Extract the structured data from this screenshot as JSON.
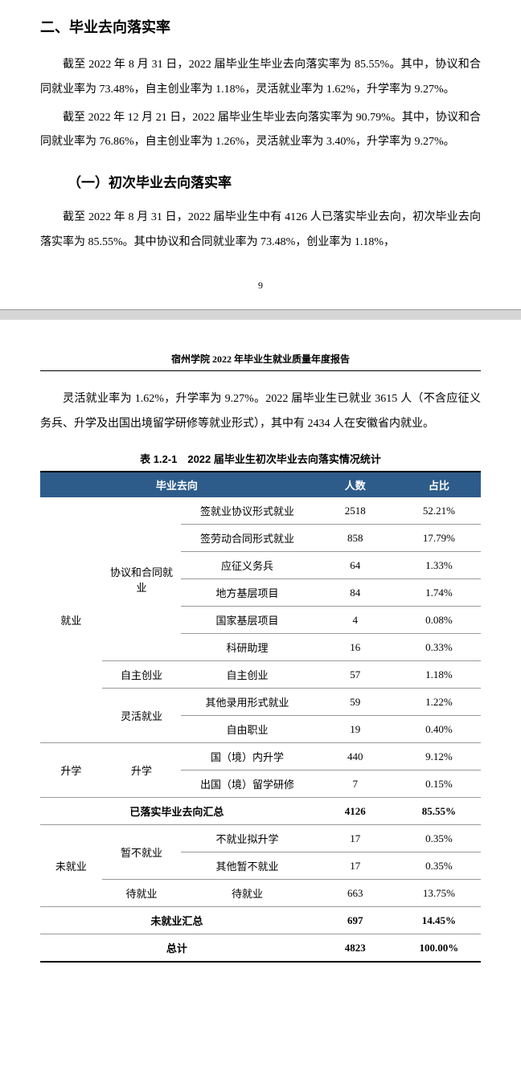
{
  "page1": {
    "heading2": "二、毕业去向落实率",
    "para1": "截至 2022 年 8 月 31 日，2022 届毕业生毕业去向落实率为 85.55%。其中，协议和合同就业率为 73.48%，自主创业率为 1.18%，灵活就业率为 1.62%，升学率为 9.27%。",
    "para2": "截至 2022 年 12 月 21 日，2022 届毕业生毕业去向落实率为 90.79%。其中，协议和合同就业率为 76.86%，自主创业率为 1.26%，灵活就业率为 3.40%，升学率为 9.27%。",
    "heading3": "（一）初次毕业去向落实率",
    "para3": "截至 2022 年 8 月 31 日，2022 届毕业生中有 4126 人已落实毕业去向，初次毕业去向落实率为 85.55%。其中协议和合同就业率为 73.48%，创业率为 1.18%，",
    "page_number": "9"
  },
  "page2": {
    "report_header": "宿州学院 2022 年毕业生就业质量年度报告",
    "para1": "灵活就业率为 1.62%，升学率为 9.27%。2022 届毕业生已就业 3615 人（不含应征义务兵、升学及出国出境留学研修等就业形式），其中有 2434 人在安徽省内就业。",
    "table_caption": "表 1.2-1　2022 届毕业生初次毕业去向落实情况统计"
  },
  "table": {
    "header_bg": "#2e5c8a",
    "header_color": "#ffffff",
    "border_color": "#999999",
    "headers": {
      "col1": "毕业去向",
      "col2": "人数",
      "col3": "占比"
    },
    "rows": [
      {
        "cat1": "就业",
        "cat1_rowspan": 9,
        "cat2": "协议和合同就业",
        "cat2_rowspan": 6,
        "cat3": "签就业协议形式就业",
        "count": "2518",
        "pct": "52.21%"
      },
      {
        "cat3": "签劳动合同形式就业",
        "count": "858",
        "pct": "17.79%"
      },
      {
        "cat3": "应征义务兵",
        "count": "64",
        "pct": "1.33%"
      },
      {
        "cat3": "地方基层项目",
        "count": "84",
        "pct": "1.74%"
      },
      {
        "cat3": "国家基层项目",
        "count": "4",
        "pct": "0.08%"
      },
      {
        "cat3": "科研助理",
        "count": "16",
        "pct": "0.33%"
      },
      {
        "cat2": "自主创业",
        "cat2_rowspan": 1,
        "cat3": "自主创业",
        "count": "57",
        "pct": "1.18%"
      },
      {
        "cat2": "灵活就业",
        "cat2_rowspan": 2,
        "cat3": "其他录用形式就业",
        "count": "59",
        "pct": "1.22%"
      },
      {
        "cat3": "自由职业",
        "count": "19",
        "pct": "0.40%"
      },
      {
        "cat1": "升学",
        "cat1_rowspan": 2,
        "cat2": "升学",
        "cat2_rowspan": 2,
        "cat3": "国（境）内升学",
        "count": "440",
        "pct": "9.12%"
      },
      {
        "cat3": "出国（境）留学研修",
        "count": "7",
        "pct": "0.15%"
      }
    ],
    "summary1": {
      "label": "已落实毕业去向汇总",
      "count": "4126",
      "pct": "85.55%"
    },
    "unrows": [
      {
        "cat1": "未就业",
        "cat1_rowspan": 3,
        "cat2": "暂不就业",
        "cat2_rowspan": 2,
        "cat3": "不就业拟升学",
        "count": "17",
        "pct": "0.35%"
      },
      {
        "cat3": "其他暂不就业",
        "count": "17",
        "pct": "0.35%"
      },
      {
        "cat2": "待就业",
        "cat2_rowspan": 1,
        "cat3": "待就业",
        "count": "663",
        "pct": "13.75%"
      }
    ],
    "summary2": {
      "label": "未就业汇总",
      "count": "697",
      "pct": "14.45%"
    },
    "total": {
      "label": "总计",
      "count": "4823",
      "pct": "100.00%"
    }
  }
}
